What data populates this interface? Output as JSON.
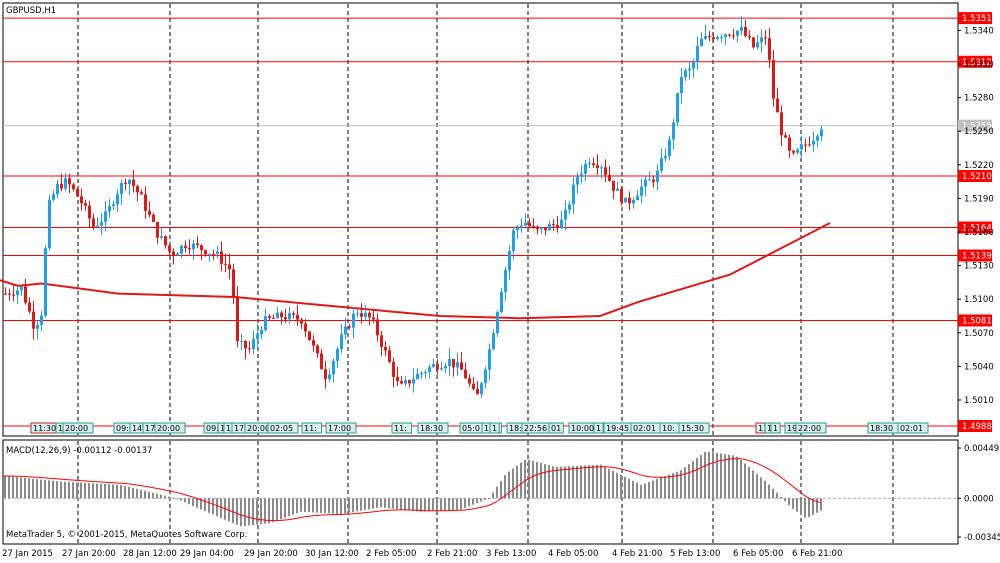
{
  "chart_title": "GBPUSD,H1",
  "indicator_title": "MACD(12,26,9) -0.00112 -0.00137",
  "copyright": "MetaTrader 5, © 2001-2015, MetaQuotes Software Corp.",
  "colors": {
    "bull": "#1ea0e6",
    "bear": "#e01818",
    "level_line": "#ff0000",
    "ma_line": "#e01818",
    "grid_dash": "#000000",
    "macd_hist": "#8a8a8a",
    "macd_signal": "#ff0000",
    "current_price_bg": "#c0c0c0",
    "level_label_bg": "#ff0000",
    "event_box_fill": "#d8f0ee",
    "event_box_border_bull": "#2a9a8a",
    "event_box_border_bear": "#cc2222"
  },
  "chart_data": {
    "type": "candlestick",
    "symbol": "GBPUSD",
    "timeframe": "H1",
    "y_range": [
      1.4985,
      1.536
    ],
    "price_axis_ticks": [
      "1.5340",
      "1.5310",
      "1.5280",
      "1.5250",
      "1.5220",
      "1.5190",
      "1.5160",
      "1.5130",
      "1.5100",
      "1.5070",
      "1.5040",
      "1.5010"
    ],
    "horizontal_levels": [
      "1.5351",
      "1.5312",
      "1.5210",
      "1.5164",
      "1.5139",
      "1.5081"
    ],
    "current_price_label": "1.5255",
    "low_price_label": "1.4988",
    "time_axis_labels": [
      "27 Jan 2015",
      "27 Jan 20:00",
      "28 Jan 12:00",
      "29 Jan 04:00",
      "29 Jan 20:00",
      "30 Jan 12:00",
      "2 Feb 05:00",
      "2 Feb 21:00",
      "3 Feb 13:00",
      "4 Feb 05:00",
      "4 Feb 21:00",
      "5 Feb 13:00",
      "6 Feb 05:00",
      "6 Feb 21:00"
    ],
    "event_labels": [
      "11:30",
      "1",
      "20:00",
      "09:0",
      "14",
      "17",
      "20:00",
      "09:",
      "1",
      "1",
      "17",
      "20:00",
      "02:05",
      "11:",
      "17:00",
      "11:",
      "18:30",
      "05:0",
      "11:",
      "1",
      "18:",
      "22:56",
      "01",
      "10:00",
      "1",
      "19:45",
      "02:01",
      "10:",
      "15:30",
      "11:",
      "1",
      "1",
      "19",
      "22:00",
      "18:30",
      "02:01"
    ],
    "ma_points": [
      [
        1.5117,
        0
      ],
      [
        1.5112,
        18
      ],
      [
        1.5114,
        42
      ],
      [
        1.5105,
        118
      ],
      [
        1.5102,
        235
      ],
      [
        1.5094,
        330
      ],
      [
        1.5085,
        440
      ],
      [
        1.5083,
        520
      ],
      [
        1.5085,
        600
      ],
      [
        1.5098,
        640
      ],
      [
        1.5122,
        730
      ],
      [
        1.5168,
        830
      ]
    ],
    "macd": {
      "y_range": [
        -0.00345,
        0.00449
      ],
      "ticks": [
        "0.00449",
        "0.0000",
        "-0.00345"
      ],
      "macd": -0.00112,
      "signal": -0.00137
    }
  }
}
